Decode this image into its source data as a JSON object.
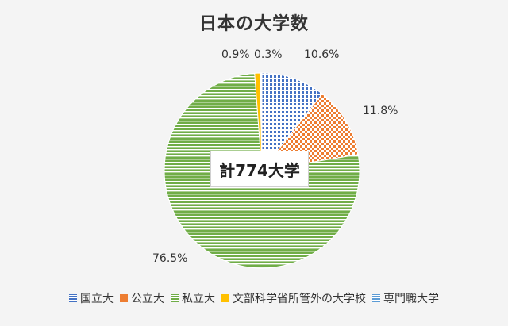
{
  "chart_data": {
    "type": "pie",
    "title": "日本の大学数",
    "center_label": "計774大学",
    "slices": [
      {
        "name": "国立大",
        "value": 10.6,
        "label": "10.6%",
        "color": "#4472c4",
        "pattern": "dots"
      },
      {
        "name": "公立大",
        "value": 11.8,
        "label": "11.8%",
        "color": "#ed7d31",
        "pattern": "checker"
      },
      {
        "name": "私立大",
        "value": 76.5,
        "label": "76.5%",
        "color": "#70ad47",
        "pattern": "hlines"
      },
      {
        "name": "文部科学省所管外の大学校",
        "value": 0.9,
        "label": "0.9%",
        "color": "#ffc000",
        "pattern": "solid"
      },
      {
        "name": "専門職大学",
        "value": 0.3,
        "label": "0.3%",
        "color": "#5b9bd5",
        "pattern": "dots"
      }
    ],
    "legend_position": "bottom",
    "start_angle_deg": 0,
    "direction": "clockwise"
  }
}
